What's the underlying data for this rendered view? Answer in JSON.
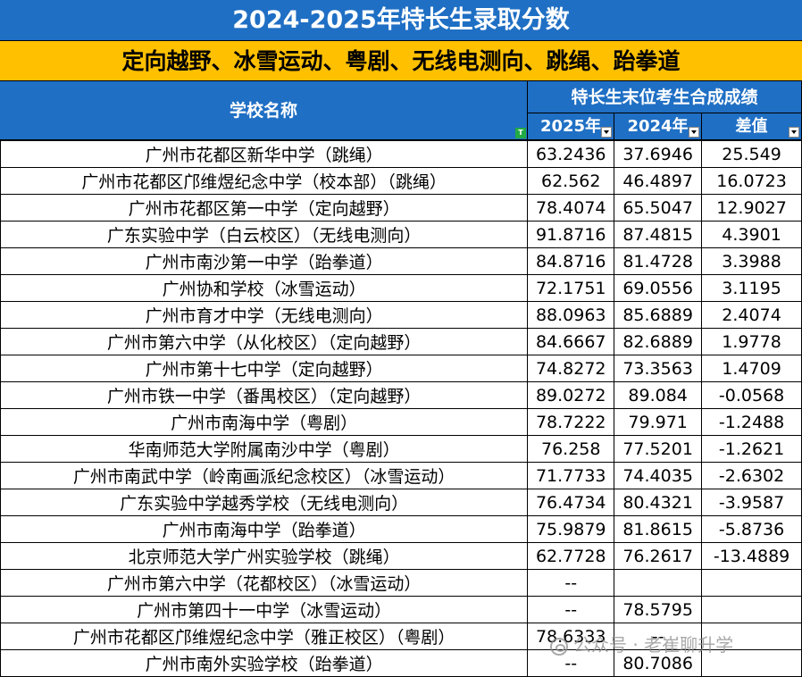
{
  "title": "2024-2025年特长生录取分数",
  "subtitle": "定向越野、冰雪运动、粤剧、无线电测向、跳绳、跆拳道",
  "header": {
    "school_name": "学校名称",
    "score_group": "特长生末位考生合成成绩",
    "col_2025": "2025年",
    "col_2024": "2024年",
    "col_diff": "差值"
  },
  "rows": [
    {
      "school": "广州市花都区新华中学（跳绳）",
      "y2025": "63.2436",
      "y2024": "37.6946",
      "diff": "25.549"
    },
    {
      "school": "广州市花都区邝维煜纪念中学（校本部）（跳绳）",
      "y2025": "62.562",
      "y2024": "46.4897",
      "diff": "16.0723"
    },
    {
      "school": "广州市花都区第一中学（定向越野）",
      "y2025": "78.4074",
      "y2024": "65.5047",
      "diff": "12.9027"
    },
    {
      "school": "广东实验中学（白云校区）（无线电测向）",
      "y2025": "91.8716",
      "y2024": "87.4815",
      "diff": "4.3901"
    },
    {
      "school": "广州市南沙第一中学（跆拳道）",
      "y2025": "84.8716",
      "y2024": "81.4728",
      "diff": "3.3988"
    },
    {
      "school": "广州协和学校（冰雪运动）",
      "y2025": "72.1751",
      "y2024": "69.0556",
      "diff": "3.1195"
    },
    {
      "school": "广州市育才中学（无线电测向）",
      "y2025": "88.0963",
      "y2024": "85.6889",
      "diff": "2.4074"
    },
    {
      "school": "广州市第六中学（从化校区）（定向越野）",
      "y2025": "84.6667",
      "y2024": "82.6889",
      "diff": "1.9778"
    },
    {
      "school": "广州市第十七中学（定向越野）",
      "y2025": "74.8272",
      "y2024": "73.3563",
      "diff": "1.4709"
    },
    {
      "school": "广州市铁一中学（番禺校区）（定向越野）",
      "y2025": "89.0272",
      "y2024": "89.084",
      "diff": "-0.0568"
    },
    {
      "school": "广州市南海中学（粤剧）",
      "y2025": "78.7222",
      "y2024": "79.971",
      "diff": "-1.2488"
    },
    {
      "school": "华南师范大学附属南沙中学（粤剧）",
      "y2025": "76.258",
      "y2024": "77.5201",
      "diff": "-1.2621"
    },
    {
      "school": "广州市南武中学（岭南画派纪念校区）（冰雪运动）",
      "y2025": "71.7733",
      "y2024": "74.4035",
      "diff": "-2.6302"
    },
    {
      "school": "广东实验中学越秀学校（无线电测向）",
      "y2025": "76.4734",
      "y2024": "80.4321",
      "diff": "-3.9587"
    },
    {
      "school": "广州市南海中学（跆拳道）",
      "y2025": "75.9879",
      "y2024": "81.8615",
      "diff": "-5.8736"
    },
    {
      "school": "北京师范大学广州实验学校（跳绳）",
      "y2025": "62.7728",
      "y2024": "76.2617",
      "diff": "-13.4889"
    },
    {
      "school": "广州市第六中学（花都校区）（冰雪运动）",
      "y2025": "--",
      "y2024": "",
      "diff": ""
    },
    {
      "school": "广州市第四十一中学（冰雪运动）",
      "y2025": "--",
      "y2024": "78.5795",
      "diff": ""
    },
    {
      "school": "广州市花都区邝维煜纪念中学（雅正校区）（粤剧）",
      "y2025": "78.6333",
      "y2024": "--",
      "diff": ""
    },
    {
      "school": "广州市南外实验学校（跆拳道）",
      "y2025": "--",
      "y2024": "80.7086",
      "diff": ""
    }
  ],
  "watermark": "公众号 · 老崔聊升学",
  "colors": {
    "header_blue": "#1F6FC4",
    "subtitle_yellow": "#FFC000"
  }
}
